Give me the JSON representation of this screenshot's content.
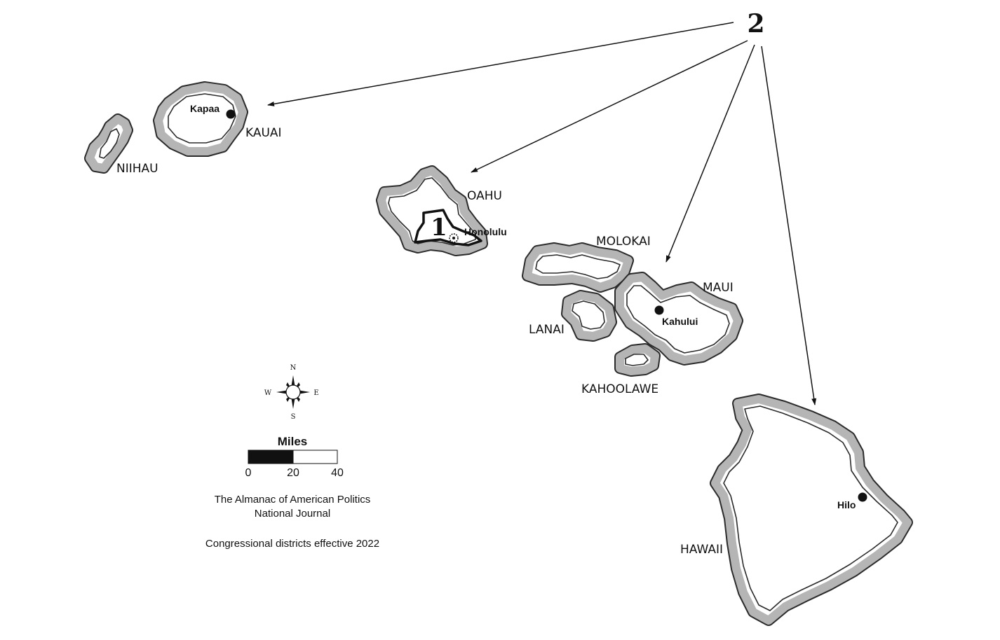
{
  "islands": {
    "niihau": "NIIHAU",
    "kauai": "KAUAI",
    "oahu": "OAHU",
    "molokai": "MOLOKAI",
    "lanai": "LANAI",
    "maui": "MAUI",
    "kahoolawe": "KAHOOLAWE",
    "hawaii": "HAWAII"
  },
  "cities": {
    "kapaa": "Kapaa",
    "honolulu": "Honolulu",
    "kahului": "Kahului",
    "hilo": "Hilo"
  },
  "districts": {
    "d1": "1",
    "d2": "2"
  },
  "compass": {
    "n": "N",
    "s": "S",
    "e": "E",
    "w": "W"
  },
  "scale_bar": {
    "title": "Miles",
    "ticks": [
      "0",
      "20",
      "40"
    ]
  },
  "credits": {
    "line1": "The Almanac of American Politics",
    "line2": "National Journal",
    "line3": "Congressional districts effective 2022"
  },
  "colors": {
    "island_border": "#2b2b2b",
    "island_buffer": "#b5b5b5",
    "land": "#ffffff"
  }
}
